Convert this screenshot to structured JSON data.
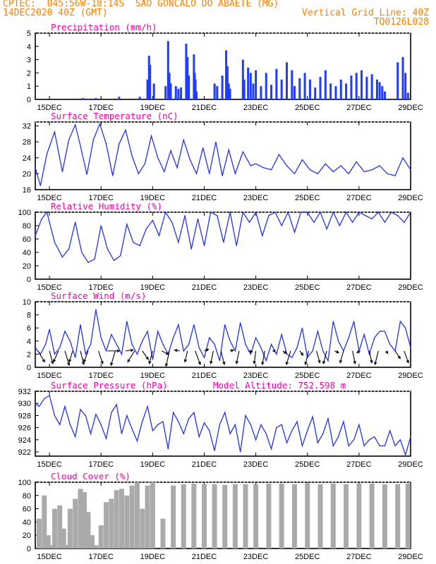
{
  "header": {
    "line1": "CPTEC:  045:56W-18:14S  SAO GONCALO DO ABAETE (MG)",
    "line2_left": "14DEC2020 40Z (GMT)",
    "line2_right": "Vertical Grid Line: 40Z",
    "line3_right": "TQ0126L028"
  },
  "colors": {
    "header": "#ff7f00",
    "title": "#ff00aa",
    "line": "#2233ee",
    "bar": "#1f3cff",
    "cloud": "#aaaaaa",
    "arrow": "#000000"
  },
  "x_ticks": [
    "15DEC",
    "17DEC",
    "19DEC",
    "21DEC",
    "23DEC",
    "25DEC",
    "27DEC",
    "29DEC"
  ],
  "x_range_days": [
    14.45,
    29.0
  ],
  "chart_data": [
    {
      "type": "bar",
      "title": "Precipitation (mm/h)",
      "ylim": [
        0,
        5
      ],
      "yticks": [
        0,
        1,
        2,
        3,
        4,
        5
      ],
      "x": [
        16.3,
        16.8,
        17.7,
        18.5,
        18.8,
        18.86,
        18.9,
        19.05,
        19.5,
        19.6,
        19.65,
        19.7,
        19.9,
        20.0,
        20.1,
        20.3,
        20.35,
        20.4,
        20.6,
        20.63,
        20.66,
        20.7,
        21.4,
        21.5,
        21.7,
        21.85,
        21.9,
        21.95,
        22.0,
        22.5,
        22.55,
        22.7,
        22.8,
        22.9,
        23.0,
        23.2,
        23.4,
        23.6,
        23.8,
        24.0,
        24.2,
        24.4,
        24.5,
        24.7,
        24.9,
        25.1,
        25.3,
        25.5,
        25.7,
        25.9,
        26.1,
        26.3,
        26.5,
        26.7,
        26.9,
        27.1,
        27.3,
        27.5,
        27.7,
        27.8,
        27.9,
        28.0,
        28.5,
        28.7,
        28.8,
        28.9
      ],
      "values": [
        0.1,
        0.1,
        0.2,
        0.2,
        1.5,
        3.3,
        2.6,
        1.2,
        1.0,
        4.4,
        2.0,
        1.2,
        1.0,
        0.8,
        0.9,
        4.2,
        3.2,
        1.8,
        3.4,
        2.0,
        1.5,
        0.6,
        1.2,
        1.0,
        1.8,
        3.7,
        2.5,
        1.2,
        0.8,
        3.0,
        1.5,
        2.4,
        2.0,
        1.2,
        2.2,
        1.0,
        2.0,
        1.1,
        2.3,
        1.5,
        2.8,
        2.2,
        1.0,
        1.6,
        2.0,
        1.5,
        0.9,
        1.7,
        2.2,
        1.2,
        1.0,
        1.5,
        1.2,
        1.8,
        2.0,
        2.2,
        1.7,
        1.9,
        1.5,
        1.3,
        1.0,
        0.6,
        2.8,
        3.2,
        2.0,
        0.5
      ]
    },
    {
      "type": "line",
      "title": "Surface Temperature (nC)",
      "ylim": [
        16,
        33
      ],
      "yticks": [
        16,
        20,
        24,
        28,
        32
      ],
      "x": [
        14.45,
        14.65,
        14.9,
        15.2,
        15.5,
        15.75,
        16.0,
        16.2,
        16.45,
        16.7,
        16.95,
        17.2,
        17.45,
        17.7,
        17.95,
        18.2,
        18.45,
        18.7,
        18.95,
        19.2,
        19.45,
        19.7,
        19.95,
        20.2,
        20.45,
        20.7,
        20.95,
        21.2,
        21.45,
        21.7,
        21.95,
        22.2,
        22.5,
        22.8,
        23.0,
        23.3,
        23.6,
        23.9,
        24.2,
        24.5,
        24.8,
        25.1,
        25.4,
        25.7,
        26.0,
        26.3,
        26.6,
        26.9,
        27.2,
        27.5,
        27.8,
        28.1,
        28.4,
        28.7,
        29.0
      ],
      "values": [
        21.5,
        17.0,
        25.0,
        30.5,
        20.5,
        28.5,
        32.3,
        27.0,
        19.8,
        28.5,
        32.5,
        27.5,
        19.5,
        27.5,
        31.0,
        24.5,
        20.0,
        22.5,
        29.5,
        24.0,
        20.5,
        25.8,
        21.5,
        28.5,
        23.5,
        20.0,
        26.5,
        20.0,
        28.0,
        19.5,
        26.0,
        20.0,
        25.5,
        22.0,
        22.5,
        21.5,
        21.0,
        24.8,
        22.0,
        20.0,
        23.5,
        21.0,
        20.0,
        22.5,
        20.5,
        22.0,
        20.0,
        23.0,
        20.5,
        21.0,
        22.0,
        20.0,
        19.5,
        24.0,
        21.0
      ]
    },
    {
      "type": "line",
      "title": "Relative Humidity (%)",
      "ylim": [
        0,
        100
      ],
      "yticks": [
        0,
        20,
        40,
        60,
        80,
        100
      ],
      "x": [
        14.45,
        14.7,
        14.9,
        15.2,
        15.5,
        15.75,
        16.0,
        16.25,
        16.5,
        16.75,
        17.0,
        17.25,
        17.5,
        17.75,
        18.0,
        18.25,
        18.5,
        18.75,
        19.0,
        19.25,
        19.5,
        19.75,
        20.0,
        20.25,
        20.5,
        20.75,
        21.0,
        21.25,
        21.5,
        21.75,
        22.0,
        22.25,
        22.5,
        22.75,
        23.0,
        23.25,
        23.5,
        23.75,
        24.0,
        24.25,
        24.5,
        24.75,
        25.0,
        25.25,
        25.5,
        25.75,
        26.0,
        26.25,
        26.5,
        26.75,
        27.0,
        27.25,
        27.5,
        27.75,
        28.0,
        28.25,
        28.5,
        28.75,
        29.0
      ],
      "values": [
        65,
        90,
        100,
        55,
        33,
        45,
        85,
        40,
        25,
        30,
        80,
        45,
        28,
        35,
        82,
        55,
        50,
        75,
        88,
        65,
        100,
        85,
        55,
        95,
        45,
        90,
        50,
        100,
        95,
        55,
        100,
        50,
        100,
        85,
        100,
        65,
        95,
        100,
        80,
        100,
        70,
        100,
        100,
        85,
        100,
        75,
        100,
        80,
        100,
        85,
        100,
        95,
        90,
        100,
        85,
        100,
        95,
        85,
        100
      ]
    },
    {
      "type": "line",
      "title": "Surface Wind (m/s)",
      "ylim": [
        0,
        10
      ],
      "yticks": [
        0,
        2,
        4,
        6,
        8,
        10
      ],
      "x": [
        14.45,
        14.65,
        14.85,
        15.0,
        15.2,
        15.4,
        15.6,
        15.8,
        16.0,
        16.2,
        16.4,
        16.6,
        16.8,
        17.0,
        17.2,
        17.4,
        17.6,
        17.8,
        18.0,
        18.2,
        18.4,
        18.6,
        18.8,
        19.0,
        19.2,
        19.4,
        19.6,
        19.8,
        20.0,
        20.2,
        20.4,
        20.6,
        20.8,
        21.0,
        21.2,
        21.4,
        21.6,
        21.8,
        22.0,
        22.2,
        22.4,
        22.6,
        22.8,
        23.0,
        23.2,
        23.4,
        23.6,
        23.8,
        24.0,
        24.2,
        24.4,
        24.6,
        24.8,
        25.0,
        25.2,
        25.4,
        25.6,
        25.8,
        26.0,
        26.2,
        26.4,
        26.6,
        26.8,
        27.0,
        27.2,
        27.4,
        27.6,
        27.8,
        28.0,
        28.2,
        28.4,
        28.6,
        28.8,
        29.0
      ],
      "values": [
        3.0,
        2.0,
        3.5,
        5.8,
        2.0,
        3.0,
        5.5,
        4.0,
        1.5,
        6.5,
        2.0,
        3.5,
        8.8,
        4.5,
        2.5,
        5.0,
        3.5,
        2.0,
        7.0,
        3.5,
        2.0,
        4.0,
        5.5,
        1.2,
        5.5,
        3.5,
        2.0,
        4.5,
        6.5,
        2.5,
        3.5,
        6.5,
        3.0,
        1.5,
        4.5,
        3.5,
        1.0,
        6.5,
        4.0,
        2.5,
        6.8,
        3.5,
        2.0,
        4.5,
        3.0,
        1.0,
        3.5,
        2.0,
        5.0,
        2.0,
        1.5,
        3.0,
        6.0,
        1.5,
        2.5,
        5.5,
        2.5,
        1.0,
        7.0,
        4.0,
        2.5,
        4.5,
        7.0,
        2.5,
        5.0,
        2.0,
        4.5,
        5.5,
        5.5,
        3.5,
        2.5,
        7.0,
        6.0,
        3.0
      ],
      "vectors": {
        "x": [
          14.55,
          15.0,
          15.35,
          15.6,
          15.9,
          16.2,
          16.5,
          16.9,
          17.25,
          17.55,
          17.95,
          18.3,
          18.6,
          19.0,
          19.35,
          19.65,
          20.05,
          20.35,
          20.65,
          21.0,
          21.35,
          21.65,
          22.0,
          22.35,
          22.7,
          23.0,
          23.35,
          23.7,
          24.05,
          24.35,
          24.7,
          25.05,
          25.35,
          25.75,
          26.05,
          26.4,
          26.75,
          27.05,
          27.4,
          27.75,
          28.05,
          28.4,
          28.75
        ],
        "u": [
          0.8,
          0.4,
          -0.6,
          0.5,
          -0.4,
          0.4,
          -0.5,
          0.5,
          1.4,
          -0.5,
          0.9,
          -0.8,
          0.7,
          -0.4,
          0.8,
          -0.4,
          -0.6,
          -0.3,
          0.6,
          0.5,
          -0.3,
          0.4,
          0.4,
          -0.3,
          0.5,
          -0.2,
          -0.3,
          -0.1,
          0.4,
          -0.5,
          0.4,
          -0.4,
          0.4,
          -0.4,
          0.5,
          -0.4,
          0.3,
          -0.4,
          0.3,
          -0.4,
          0.2,
          0.6,
          0.5
        ],
        "v": [
          -1.3,
          -1.5,
          -1.3,
          -1.7,
          -1.3,
          -1.6,
          -1.3,
          -1.5,
          0.0,
          -1.7,
          0.1,
          -1.3,
          -1.0,
          -1.5,
          -0.4,
          -1.8,
          0.1,
          -1.3,
          -1.6,
          0.2,
          -1.5,
          -1.6,
          0.1,
          -1.5,
          -0.1,
          -1.5,
          -1.6,
          0.0,
          -0.3,
          -1.6,
          -0.5,
          -1.6,
          -1.4,
          -1.5,
          -0.2,
          -1.4,
          -1.5,
          -0.2,
          -1.4,
          -1.6,
          -0.3,
          -0.9,
          -1.4
        ]
      }
    },
    {
      "type": "line",
      "title": "Surface Pressure (hPa)",
      "annotation": "Model Altitude: 752.598 m",
      "ylim": [
        921.3,
        932
      ],
      "yticks": [
        922,
        924,
        926,
        928,
        930,
        932
      ],
      "x": [
        14.45,
        14.6,
        14.8,
        15.0,
        15.2,
        15.4,
        15.6,
        15.8,
        16.0,
        16.2,
        16.4,
        16.6,
        16.8,
        17.0,
        17.2,
        17.4,
        17.6,
        17.8,
        18.0,
        18.2,
        18.4,
        18.6,
        18.8,
        19.0,
        19.2,
        19.4,
        19.6,
        19.8,
        20.0,
        20.2,
        20.4,
        20.6,
        20.8,
        21.0,
        21.2,
        21.4,
        21.6,
        21.8,
        22.0,
        22.2,
        22.4,
        22.6,
        22.8,
        23.0,
        23.2,
        23.4,
        23.6,
        23.8,
        24.0,
        24.2,
        24.4,
        24.6,
        24.8,
        25.0,
        25.2,
        25.4,
        25.6,
        25.8,
        26.0,
        26.2,
        26.4,
        26.6,
        26.8,
        27.0,
        27.2,
        27.4,
        27.6,
        27.8,
        28.0,
        28.2,
        28.4,
        28.6,
        28.8,
        29.0
      ],
      "values": [
        930.0,
        929.5,
        930.8,
        931.3,
        928.0,
        926.5,
        929.5,
        926.5,
        924.5,
        929.0,
        928.0,
        925.0,
        928.2,
        926.5,
        924.2,
        928.5,
        929.8,
        925.0,
        928.0,
        925.8,
        923.8,
        927.0,
        929.5,
        925.5,
        926.5,
        927.0,
        922.5,
        928.5,
        927.0,
        925.0,
        927.5,
        928.5,
        924.5,
        926.8,
        925.5,
        922.2,
        926.5,
        928.5,
        925.0,
        926.5,
        922.0,
        928.0,
        926.5,
        924.0,
        926.5,
        925.0,
        922.5,
        926.0,
        926.5,
        923.5,
        925.5,
        927.0,
        923.0,
        925.5,
        927.8,
        923.5,
        925.0,
        927.5,
        923.0,
        924.5,
        927.0,
        923.0,
        924.0,
        926.5,
        923.0,
        924.0,
        924.5,
        923.0,
        923.0,
        925.5,
        923.0,
        924.0,
        921.5,
        924.5
      ]
    },
    {
      "type": "bar",
      "title": "Cloud Cover (%)",
      "ylim": [
        0,
        100
      ],
      "yticks": [
        0,
        20,
        40,
        60,
        80,
        100
      ],
      "x": [
        14.6,
        14.8,
        14.95,
        15.05,
        15.2,
        15.4,
        15.55,
        15.65,
        15.8,
        16.0,
        16.2,
        16.35,
        16.5,
        16.65,
        16.8,
        17.0,
        17.2,
        17.4,
        17.6,
        17.8,
        18.0,
        18.2,
        18.4,
        18.6,
        18.8,
        19.0,
        19.4,
        19.8,
        20.2,
        20.6,
        21.0,
        21.4,
        21.8,
        22.2,
        22.6,
        23.0,
        23.5,
        24.0,
        24.5,
        25.0,
        25.5,
        26.0,
        26.5,
        27.0,
        27.5,
        28.0,
        28.5,
        28.9
      ],
      "values": [
        45,
        80,
        20,
        5,
        60,
        65,
        30,
        5,
        60,
        75,
        90,
        85,
        55,
        20,
        5,
        35,
        70,
        75,
        88,
        90,
        80,
        95,
        100,
        60,
        95,
        100,
        45,
        95,
        97,
        98,
        97,
        97,
        96,
        97,
        97,
        97,
        98,
        98,
        97,
        98,
        97,
        98,
        97,
        98,
        98,
        97,
        97,
        98
      ]
    }
  ]
}
